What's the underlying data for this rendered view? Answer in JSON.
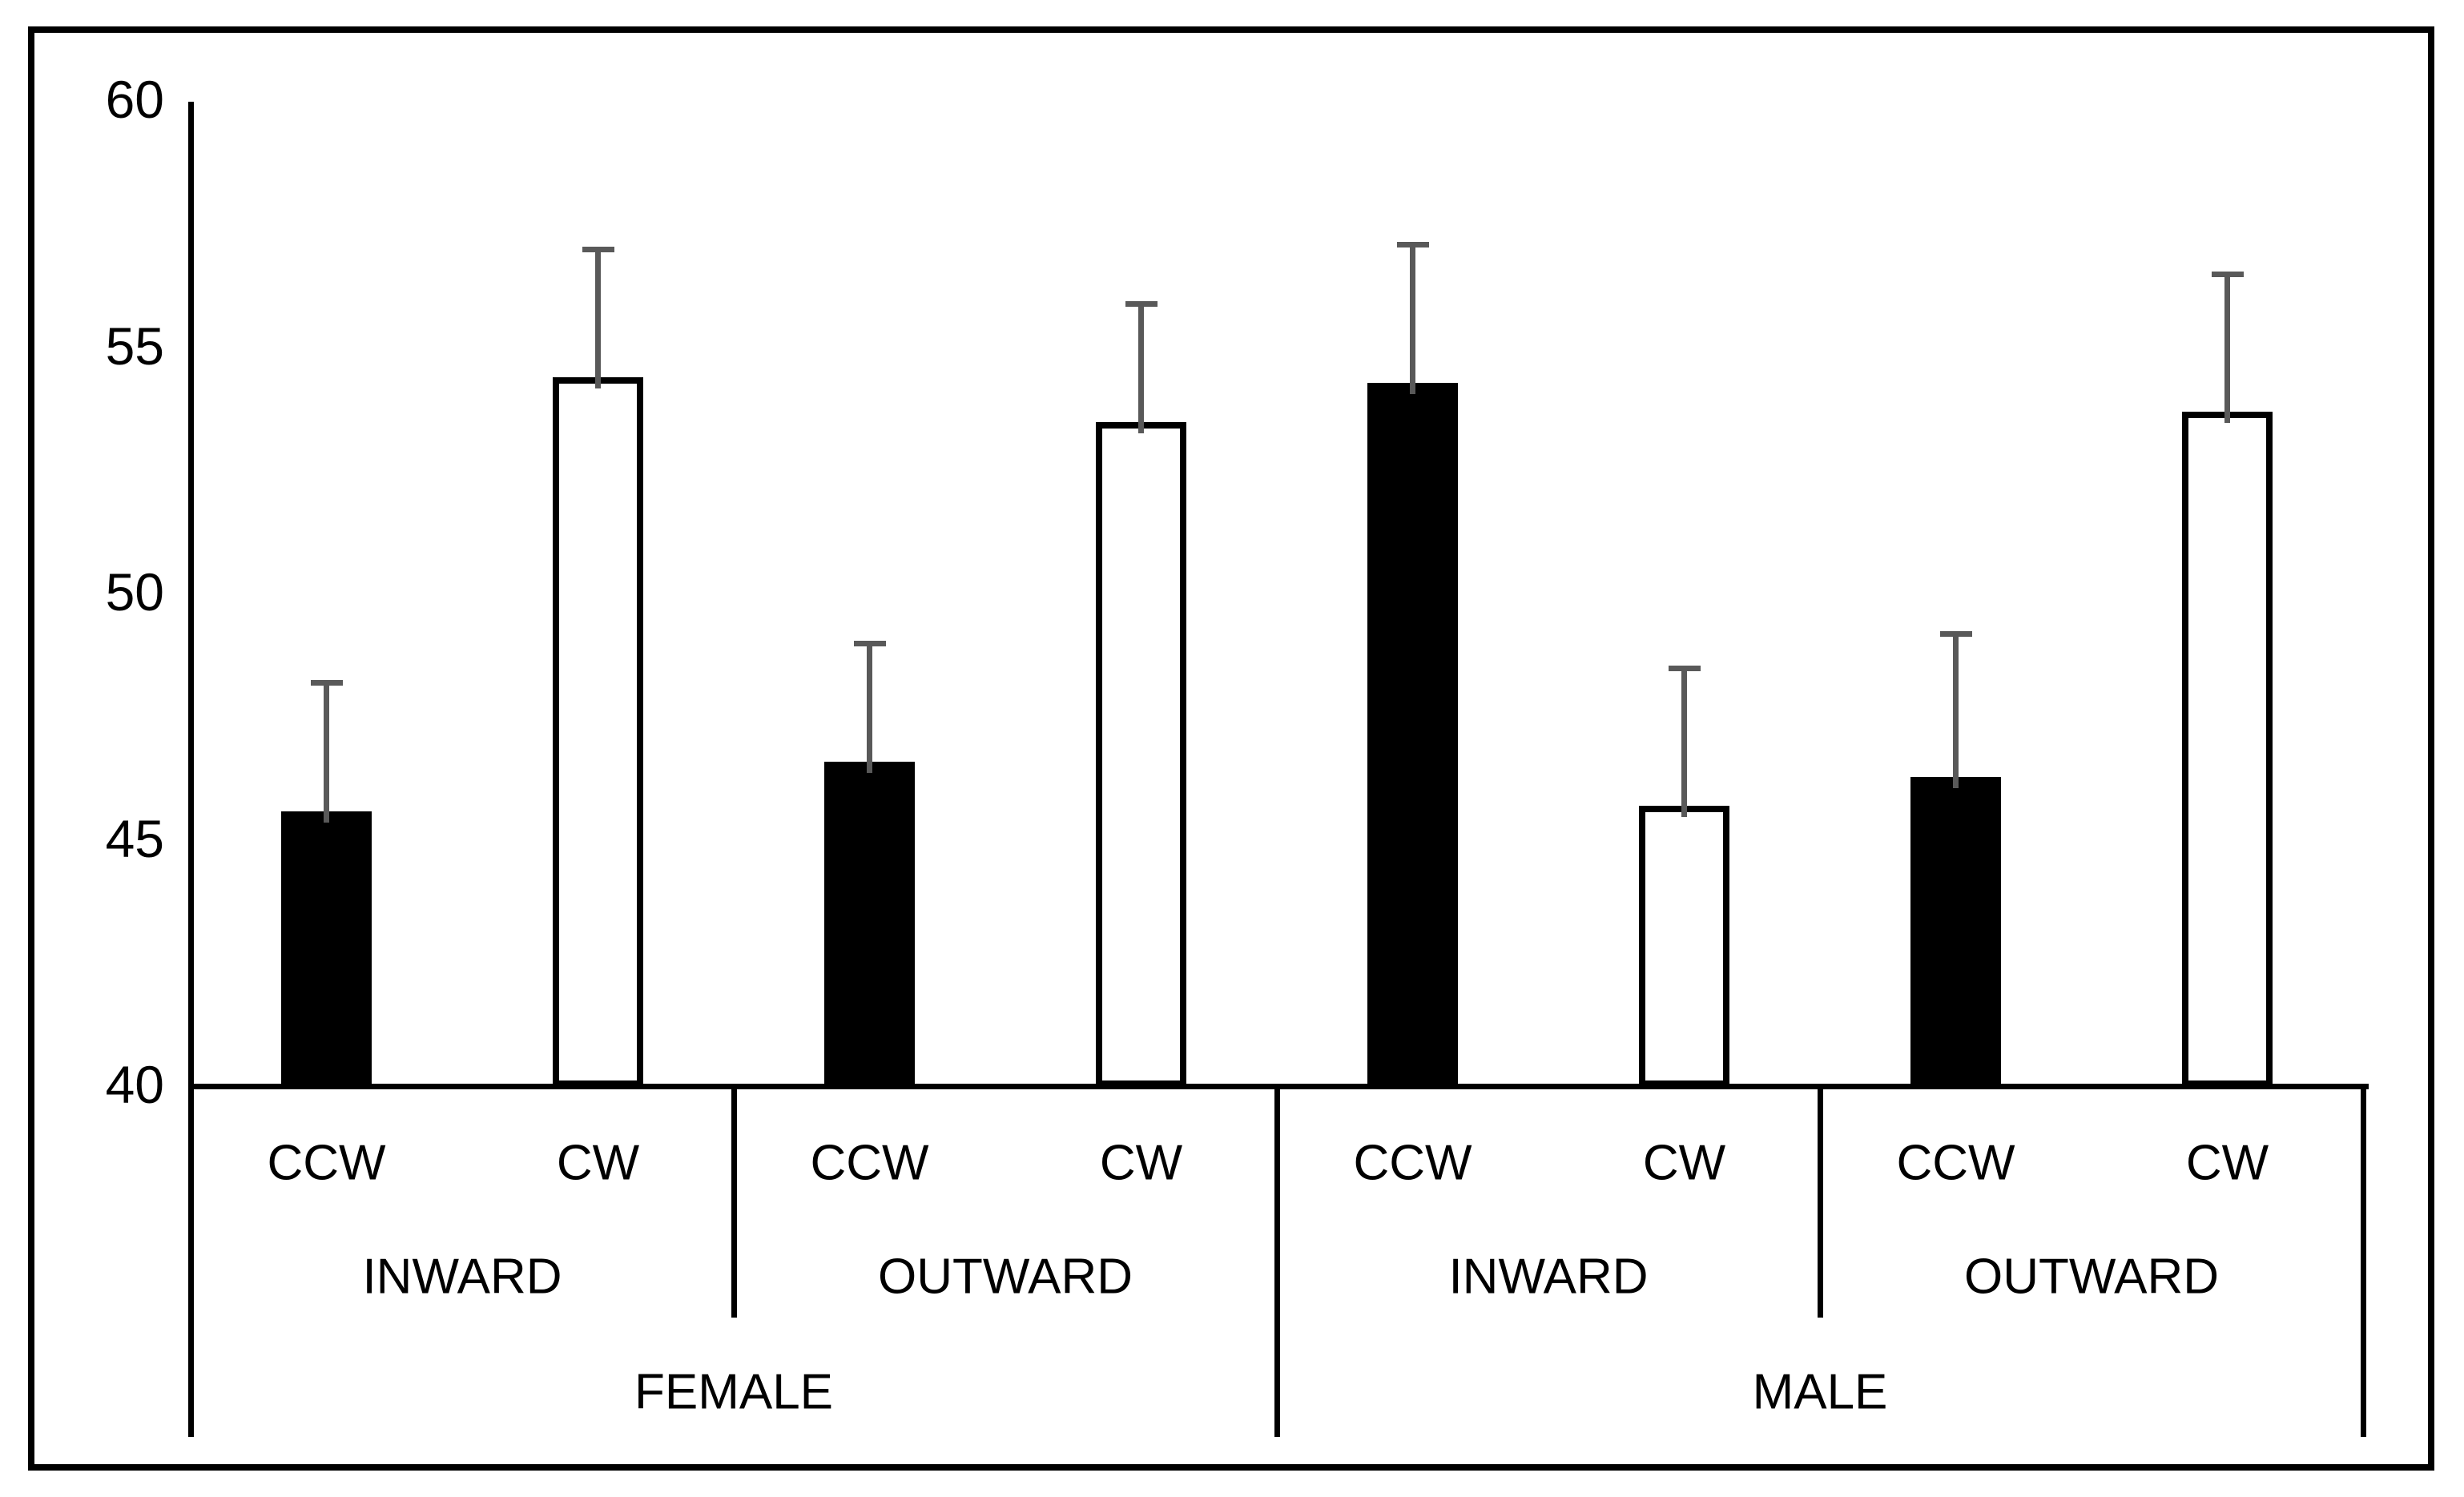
{
  "figure": {
    "background": "#ffffff",
    "border_color": "#000000"
  },
  "chart_data": {
    "type": "bar",
    "title": "",
    "xlabel": "",
    "ylabel": "",
    "grid": false,
    "legend_visible": false,
    "value_axis": {
      "min": 40,
      "max": 60,
      "ticks": [
        60,
        55,
        50,
        45,
        40
      ]
    },
    "category_levels": [
      "rotation",
      "direction",
      "sex"
    ],
    "error_bars": {
      "direction": "plus",
      "color": "#595959"
    },
    "bar_fills": {
      "CCW": "#000000",
      "CW": "#ffffff"
    },
    "groups": [
      {
        "sex": "FEMALE",
        "direction": "INWARD",
        "bars": [
          {
            "rotation": "CCW",
            "value": 45.6,
            "error_top": 48.2,
            "fill": "#000000"
          },
          {
            "rotation": "CW",
            "value": 54.4,
            "error_top": 57.0,
            "fill": "#ffffff"
          }
        ]
      },
      {
        "sex": "FEMALE",
        "direction": "OUTWARD",
        "bars": [
          {
            "rotation": "CCW",
            "value": 46.6,
            "error_top": 49.0,
            "fill": "#000000"
          },
          {
            "rotation": "CW",
            "value": 53.5,
            "error_top": 55.9,
            "fill": "#ffffff"
          }
        ]
      },
      {
        "sex": "MALE",
        "direction": "INWARD",
        "bars": [
          {
            "rotation": "CCW",
            "value": 54.3,
            "error_top": 57.1,
            "fill": "#000000"
          },
          {
            "rotation": "CW",
            "value": 45.7,
            "error_top": 48.5,
            "fill": "#ffffff"
          }
        ]
      },
      {
        "sex": "MALE",
        "direction": "OUTWARD",
        "bars": [
          {
            "rotation": "CCW",
            "value": 46.3,
            "error_top": 49.2,
            "fill": "#000000"
          },
          {
            "rotation": "CW",
            "value": 53.7,
            "error_top": 56.5,
            "fill": "#ffffff"
          }
        ]
      }
    ],
    "sex_labels": [
      "FEMALE",
      "MALE"
    ],
    "direction_labels": [
      "INWARD",
      "OUTWARD",
      "INWARD",
      "OUTWARD"
    ],
    "rotation_labels": [
      "CCW",
      "CW",
      "CCW",
      "CW",
      "CCW",
      "CW",
      "CCW",
      "CW"
    ]
  }
}
